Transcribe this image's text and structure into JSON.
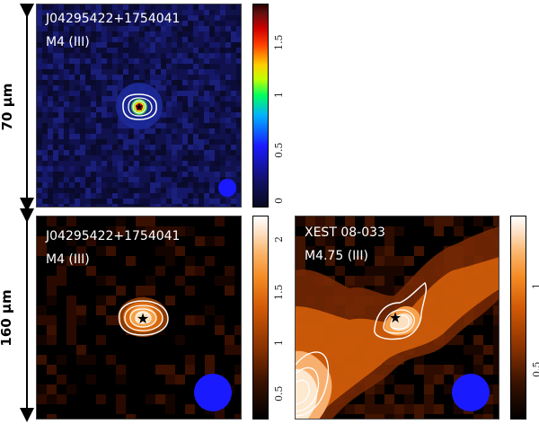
{
  "bands": {
    "top": "70 µm",
    "bottom": "160 µm"
  },
  "panels": [
    {
      "id": "p70",
      "source_name": "J04295422+1754041",
      "class_label": "M4 (III)",
      "colormap": "rainbow",
      "colorbar_ticks": [
        "0",
        "0.5",
        "1",
        "1.5"
      ]
    },
    {
      "id": "p160a",
      "source_name": "J04295422+1754041",
      "class_label": "M4 (III)",
      "colormap": "hot",
      "colorbar_ticks": [
        "0.5",
        "1",
        "1.5",
        "2"
      ]
    },
    {
      "id": "p160b",
      "source_name": "XEST 08-033",
      "class_label": "M4.75 (III)",
      "colormap": "hot",
      "colorbar_ticks": [
        "0.5",
        "1"
      ]
    }
  ],
  "colors": {
    "beam": "#1a1aff",
    "contour": "#ffffff",
    "star": "#000000"
  }
}
